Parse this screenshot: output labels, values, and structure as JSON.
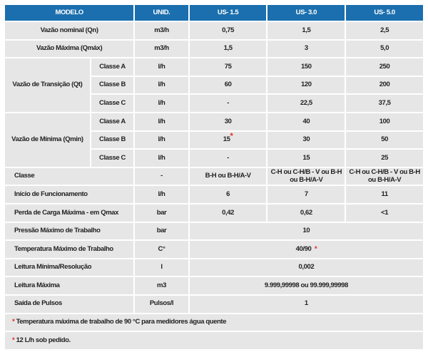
{
  "header": {
    "modelo": "MODELO",
    "unid": "UNID.",
    "models": [
      "US- 1.5",
      "US- 3.0",
      "US- 5.0"
    ]
  },
  "simple_rows_top": [
    {
      "label": "Vazão nominal (Qn)",
      "unit": "m3/h",
      "values": [
        "0,75",
        "1,5",
        "2,5"
      ]
    },
    {
      "label": "Vazão Máxima (Qmáx)",
      "unit": "m3/h",
      "values": [
        "1,5",
        "3",
        "5,0"
      ]
    }
  ],
  "groups": [
    {
      "label": "Vazão de Transição (Qt)",
      "rows": [
        {
          "classe": "Classe A",
          "unit": "l/h",
          "values": [
            "75",
            "150",
            "250"
          ]
        },
        {
          "classe": "Classe B",
          "unit": "l/h",
          "values": [
            "60",
            "120",
            "200"
          ]
        },
        {
          "classe": "Classe C",
          "unit": "l/h",
          "values": [
            "-",
            "22,5",
            "37,5"
          ]
        }
      ]
    },
    {
      "label": "Vazão de Mínima (Qmin)",
      "rows": [
        {
          "classe": "Classe A",
          "unit": "l/h",
          "values": [
            "30",
            "40",
            "100"
          ]
        },
        {
          "classe": "Classe B",
          "unit": "l/h",
          "values": [
            "15",
            "30",
            "50"
          ],
          "starred": 0
        },
        {
          "classe": "Classe C",
          "unit": "l/h",
          "values": [
            "-",
            "15",
            "25"
          ]
        }
      ]
    }
  ],
  "rows_bottom": [
    {
      "label": "Classe",
      "unit": "-",
      "values": [
        "B-H ou B-H/A-V",
        "C-H ou C-H/B - V ou B-H ou B-H/A-V",
        "C-H ou C-H/B - V ou B-H ou B-H/A-V"
      ]
    },
    {
      "label": "Início de Funcionamento",
      "unit": "l/h",
      "values": [
        "6",
        "7",
        "11"
      ]
    },
    {
      "label": "Perda de Carga Máxima - em Qmax",
      "unit": "bar",
      "values": [
        "0,42",
        "0,62",
        "<1"
      ]
    },
    {
      "label": "Pressão Máximo de Trabalho",
      "unit": "bar",
      "span": "10"
    },
    {
      "label": "Temperatura Máximo de Trabalho",
      "unit": "C°",
      "span": "40/90",
      "starred": true
    },
    {
      "label": "Leitura Mínima/Resolução",
      "unit": "l",
      "span": "0,002"
    },
    {
      "label": "Leitura Máxima",
      "unit": "m3",
      "span": "9.999,99998 ou 99.999,99998"
    },
    {
      "label": "Saída de Pulsos",
      "unit": "Pulsos/l",
      "span": "1"
    }
  ],
  "footnotes": [
    "Temperatura máxima de trabalho de 90 °C para medidores água quente",
    "12 L/h sob pedido."
  ],
  "star_symbol": "*",
  "colors": {
    "header": "#1b6fae",
    "cell": "#e6e6e6",
    "star": "#e52420"
  }
}
